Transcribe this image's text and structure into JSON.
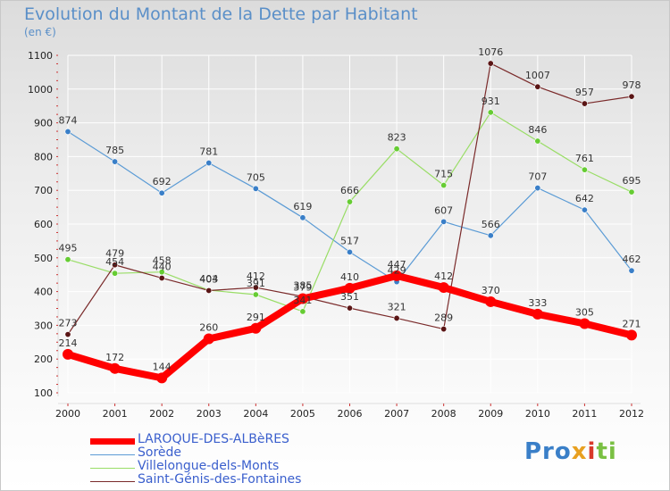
{
  "title": "Evolution du Montant de la Dette par Habitant",
  "unit": "(en €)",
  "logo": {
    "p1": "Pro",
    "p2": "x",
    "p3": "i",
    "p4": "ti"
  },
  "colors": {
    "axis_text": "#222222",
    "grid": "#ffffff",
    "tick": "#cc3333"
  },
  "chart_data": {
    "type": "line",
    "title": "Evolution du Montant de la Dette par Habitant",
    "ylabel": "(en €)",
    "xlabel": "",
    "x": [
      "2000",
      "2001",
      "2002",
      "2003",
      "2004",
      "2005",
      "2006",
      "2007",
      "2008",
      "2009",
      "2010",
      "2011",
      "2012"
    ],
    "ylim": [
      100,
      1100
    ],
    "yticks": [
      100,
      200,
      300,
      400,
      500,
      600,
      700,
      800,
      900,
      1000,
      1100
    ],
    "legend_position": "bottom-left",
    "series": [
      {
        "name": "LAROQUE-DES-ALBèRES",
        "color": "#ff0000",
        "width": 8,
        "marker_color": "#ff0000",
        "values": [
          214,
          172,
          144,
          260,
          291,
          379,
          410,
          447,
          412,
          370,
          333,
          305,
          271
        ]
      },
      {
        "name": "Sorède",
        "color": "#5b9bd5",
        "width": 1.2,
        "marker_color": "#3a7fc8",
        "values": [
          874,
          785,
          692,
          781,
          705,
          619,
          517,
          429,
          607,
          566,
          707,
          642,
          462
        ]
      },
      {
        "name": "Villelongue-dels-Monts",
        "color": "#99dd66",
        "width": 1.2,
        "marker_color": "#66cc33",
        "values": [
          495,
          454,
          458,
          404,
          391,
          341,
          666,
          823,
          715,
          931,
          846,
          761,
          695
        ]
      },
      {
        "name": "Saint-Génis-des-Fontaines",
        "color": "#7a2a2a",
        "width": 1.2,
        "marker_color": "#5a1515",
        "values": [
          273,
          479,
          440,
          403,
          412,
          385,
          351,
          321,
          289,
          1076,
          1007,
          957,
          978
        ]
      }
    ]
  }
}
